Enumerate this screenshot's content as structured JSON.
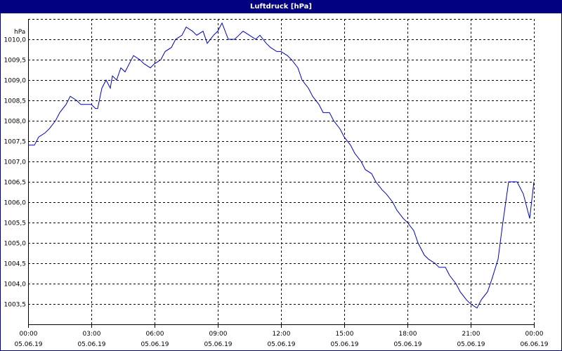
{
  "chart_data": {
    "type": "line",
    "title": "Luftdruck [hPa]",
    "ylabel": "hPa",
    "xlabel": "",
    "grid": true,
    "ylim": [
      1003.0,
      1010.5
    ],
    "xlim": [
      0,
      24
    ],
    "y_ticks": [
      "1003,5",
      "1004,0",
      "1004,5",
      "1005,0",
      "1005,5",
      "1006,0",
      "1006,5",
      "1007,0",
      "1007,5",
      "1008,0",
      "1008,5",
      "1009,0",
      "1009,5",
      "1010,0"
    ],
    "x_ticks": [
      {
        "time": "00:00",
        "date": "05.06.19"
      },
      {
        "time": "03:00",
        "date": "05.06.19"
      },
      {
        "time": "06:00",
        "date": "05.06.19"
      },
      {
        "time": "09:00",
        "date": "05.06.19"
      },
      {
        "time": "12:00",
        "date": "05.06.19"
      },
      {
        "time": "15:00",
        "date": "05.06.19"
      },
      {
        "time": "18:00",
        "date": "05.06.19"
      },
      {
        "time": "21:00",
        "date": "05.06.19"
      },
      {
        "time": "00:00",
        "date": "06.06.19"
      }
    ],
    "series": [
      {
        "color": "#0000cc",
        "x": [
          0,
          0.3,
          0.5,
          0.8,
          1.0,
          1.3,
          1.5,
          1.8,
          2.0,
          2.3,
          2.5,
          2.8,
          3.0,
          3.2,
          3.3,
          3.5,
          3.7,
          3.9,
          4.0,
          4.2,
          4.4,
          4.6,
          4.8,
          5.0,
          5.3,
          5.5,
          5.8,
          6.0,
          6.3,
          6.5,
          6.8,
          7.0,
          7.3,
          7.5,
          7.8,
          8.0,
          8.3,
          8.5,
          8.8,
          9.0,
          9.2,
          9.5,
          9.8,
          10.0,
          10.2,
          10.5,
          10.8,
          11.0,
          11.3,
          11.5,
          11.8,
          12.0,
          12.3,
          12.5,
          12.8,
          13.0,
          13.3,
          13.5,
          13.8,
          14.0,
          14.3,
          14.5,
          14.8,
          15.0,
          15.3,
          15.5,
          15.8,
          16.0,
          16.3,
          16.5,
          16.8,
          17.0,
          17.3,
          17.5,
          17.8,
          18.0,
          18.3,
          18.5,
          18.8,
          19.0,
          19.3,
          19.5,
          19.8,
          20.0,
          20.3,
          20.5,
          20.8,
          21.0,
          21.3,
          21.5,
          21.8,
          22.0,
          22.3,
          22.5,
          22.8,
          23.0,
          23.2,
          23.5,
          23.8,
          24.0
        ],
        "values": [
          1007.4,
          1007.4,
          1007.6,
          1007.7,
          1007.8,
          1008.0,
          1008.2,
          1008.4,
          1008.6,
          1008.5,
          1008.4,
          1008.4,
          1008.4,
          1008.3,
          1008.3,
          1008.8,
          1009.0,
          1008.8,
          1009.1,
          1009.0,
          1009.3,
          1009.2,
          1009.4,
          1009.6,
          1009.5,
          1009.4,
          1009.3,
          1009.4,
          1009.5,
          1009.7,
          1009.8,
          1010.0,
          1010.1,
          1010.3,
          1010.2,
          1010.1,
          1010.2,
          1009.9,
          1010.1,
          1010.2,
          1010.4,
          1010.0,
          1010.0,
          1010.1,
          1010.2,
          1010.1,
          1010.0,
          1010.1,
          1009.9,
          1009.8,
          1009.7,
          1009.7,
          1009.6,
          1009.5,
          1009.3,
          1009.0,
          1008.8,
          1008.6,
          1008.4,
          1008.2,
          1008.2,
          1008.0,
          1007.8,
          1007.6,
          1007.4,
          1007.2,
          1007.0,
          1006.8,
          1006.7,
          1006.5,
          1006.3,
          1006.2,
          1006.0,
          1005.8,
          1005.6,
          1005.5,
          1005.3,
          1005.0,
          1004.7,
          1004.6,
          1004.5,
          1004.4,
          1004.4,
          1004.2,
          1004.0,
          1003.8,
          1003.6,
          1003.5,
          1003.4,
          1003.6,
          1003.8,
          1004.1,
          1004.6,
          1005.4,
          1006.5,
          1006.5,
          1006.5,
          1006.2,
          1005.6,
          1006.5
        ]
      }
    ]
  }
}
